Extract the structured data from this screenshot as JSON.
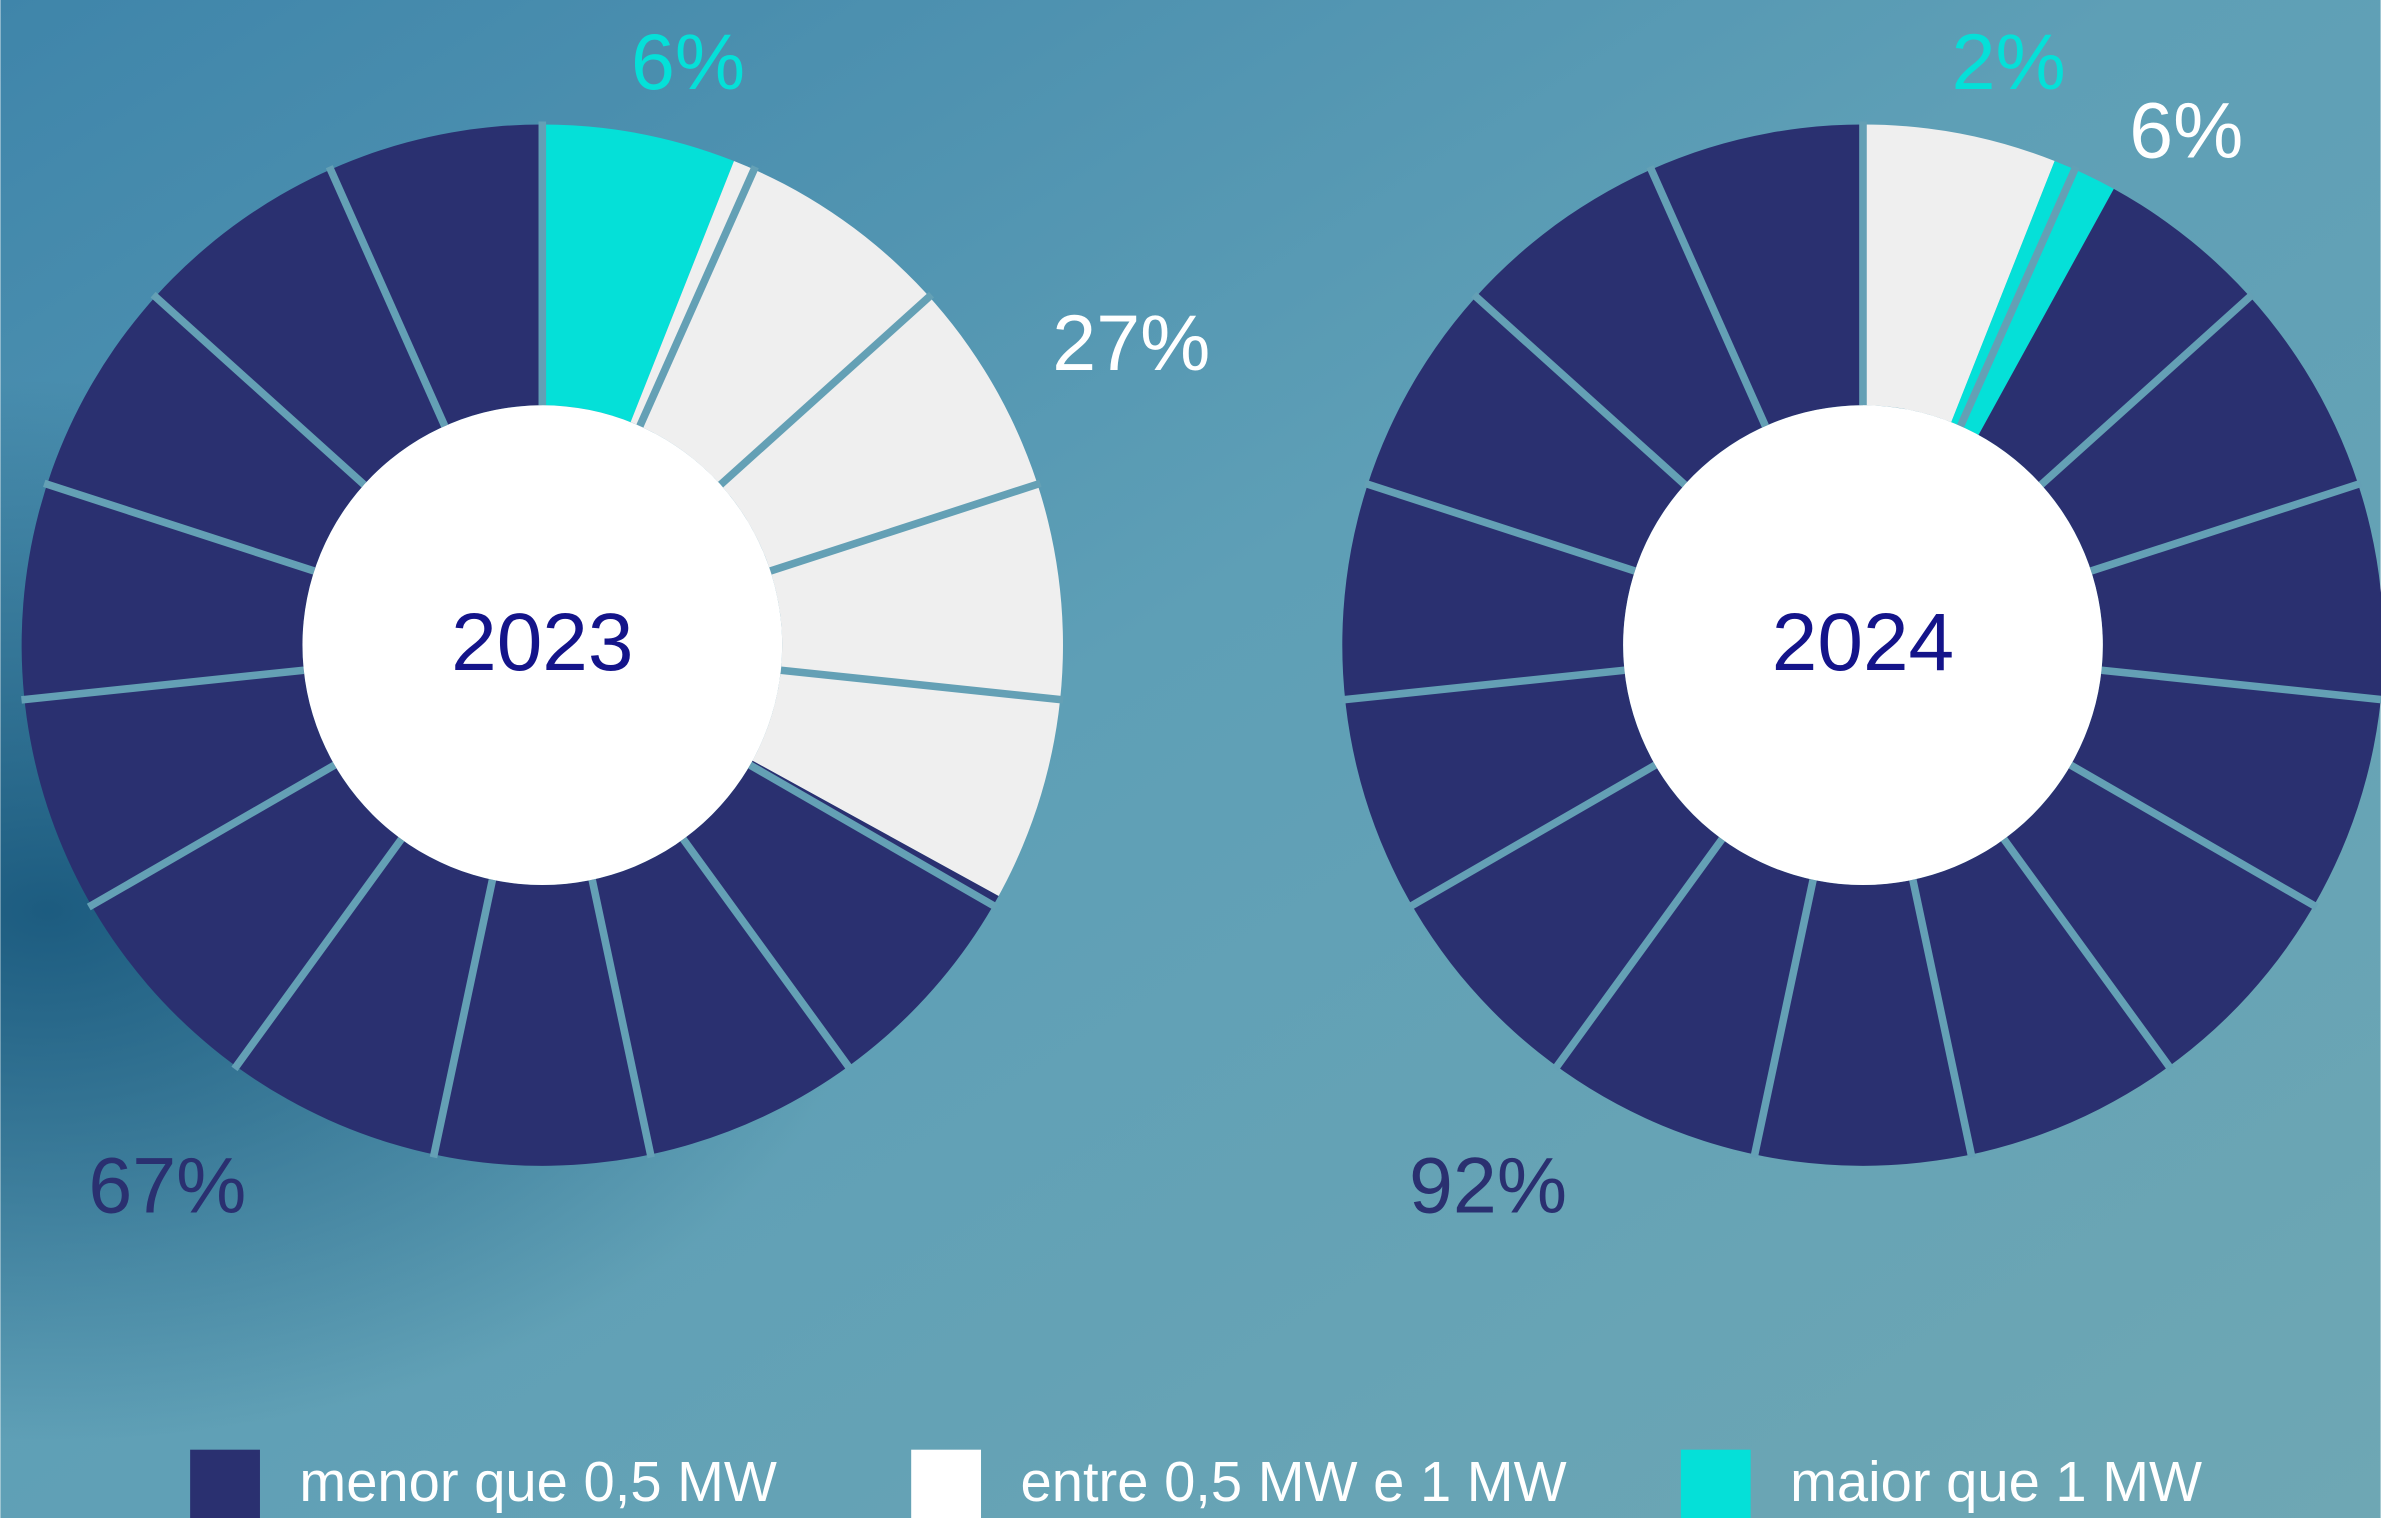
{
  "chart_data": [
    {
      "type": "pie",
      "title": "2023",
      "categories": [
        "maior que 1 MW",
        "entre 0,5 MW e 1 MW",
        "menor que 0,5 MW"
      ],
      "values": [
        6,
        27,
        67
      ],
      "value_labels": [
        "6%",
        "27%",
        "67%"
      ],
      "colors": [
        "#05e0d8",
        "#efefef",
        "#2a3070"
      ]
    },
    {
      "type": "pie",
      "title": "2024",
      "categories": [
        "entre 0,5 MW e 1 MW",
        "maior que 1 MW",
        "menor que 0,5 MW"
      ],
      "values": [
        6,
        2,
        92
      ],
      "value_labels": [
        "6%",
        "2%",
        "92%"
      ],
      "colors": [
        "#efefef",
        "#05e0d8",
        "#2a3070"
      ]
    }
  ],
  "legend": {
    "labels": [
      "menor que 0,5 MW",
      "entre 0,5 MW e 1 MW",
      "maior que 1 MW"
    ],
    "colors": [
      "#2a3070",
      "#ffffff",
      "#05e0d8"
    ]
  }
}
